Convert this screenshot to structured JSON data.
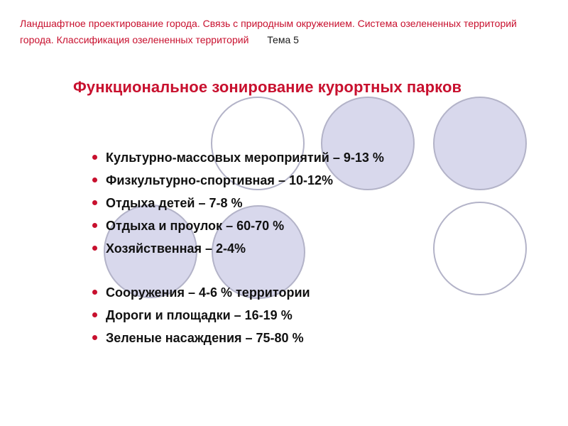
{
  "header": {
    "text": "Ландшафтное проектирование города. Связь с природным окружением.  Система озелененных территорий города. Классификация озелененных территорий",
    "topic": "Тема 5"
  },
  "title": "Функциональное зонирование курортных парков",
  "zones": [
    "Культурно-массовых мероприятий – 9-13 %",
    "Физкультурно-спортивная  – 10-12%",
    "Отдыха детей – 7-8 %",
    "Отдыха и проулок – 60-70 %",
    "Хозяйственная – 2-4%"
  ],
  "territory": [
    "Сооружения – 4-6 % территории",
    "Дороги и площадки – 16-19 %",
    "Зеленые насаждения – 75-80 %"
  ],
  "colors": {
    "accent": "#c8102e",
    "circle_fill": "#d8d8ec",
    "circle_stroke": "#b3b3c8"
  }
}
